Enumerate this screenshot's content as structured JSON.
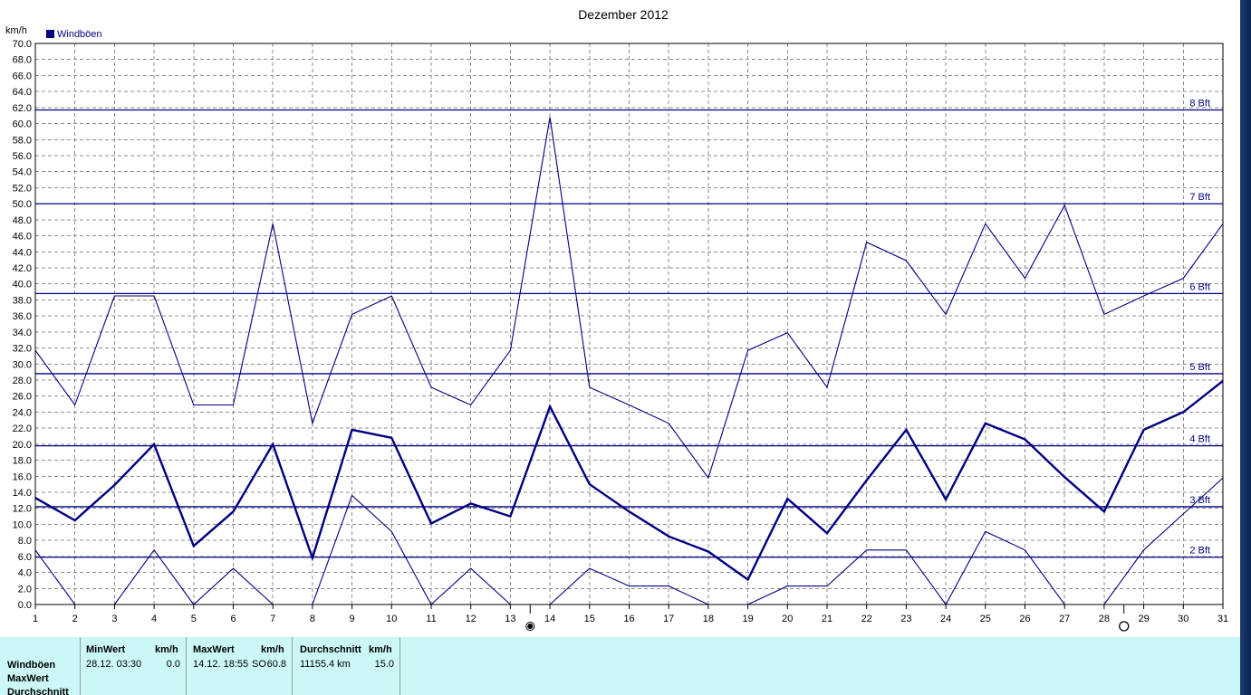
{
  "chart_data": {
    "type": "line",
    "title": "Dezember 2012",
    "ylabel": "km/h",
    "ylim": [
      0,
      70
    ],
    "ytick_step": 2,
    "x": [
      1,
      2,
      3,
      4,
      5,
      6,
      7,
      8,
      9,
      10,
      11,
      12,
      13,
      14,
      15,
      16,
      17,
      18,
      19,
      20,
      21,
      22,
      23,
      24,
      25,
      26,
      27,
      28,
      29,
      30,
      31
    ],
    "grid": true,
    "legend": {
      "placement": "top-left",
      "label": "Windböen",
      "color": "#000080"
    },
    "series": [
      {
        "role": "max",
        "stroke": "thin",
        "values": [
          31.7,
          24.9,
          38.5,
          38.5,
          24.9,
          24.9,
          47.5,
          22.6,
          36.2,
          38.5,
          27.1,
          24.9,
          31.7,
          60.8,
          27.1,
          24.9,
          22.6,
          15.8,
          31.7,
          33.9,
          27.1,
          45.2,
          42.9,
          36.2,
          47.5,
          40.7,
          49.8,
          36.2,
          38.5,
          40.7,
          47.5
        ]
      },
      {
        "role": "average",
        "stroke": "thick",
        "values": [
          13.3,
          10.5,
          14.9,
          20.0,
          7.3,
          11.6,
          20.0,
          5.8,
          21.8,
          20.8,
          10.1,
          12.6,
          11.0,
          24.7,
          15.0,
          11.6,
          8.5,
          6.6,
          3.1,
          13.2,
          8.9,
          15.5,
          21.8,
          13.1,
          22.6,
          20.6,
          15.9,
          11.6,
          21.8,
          24.0,
          27.9
        ]
      },
      {
        "role": "min",
        "stroke": "thin",
        "values": [
          6.8,
          0.0,
          0.0,
          6.8,
          0.0,
          4.5,
          0.0,
          0.0,
          13.6,
          9.1,
          0.0,
          4.5,
          0.0,
          0.0,
          4.5,
          2.3,
          2.3,
          0.0,
          0.0,
          2.3,
          2.3,
          6.8,
          6.8,
          0.0,
          9.1,
          6.8,
          0.0,
          0.0,
          6.8,
          11.3,
          15.8
        ]
      }
    ],
    "beaufort_lines": [
      {
        "label": "2 Bft",
        "value": 5.9
      },
      {
        "label": "3 Bft",
        "value": 12.2
      },
      {
        "label": "4 Bft",
        "value": 19.8
      },
      {
        "label": "5 Bft",
        "value": 28.8
      },
      {
        "label": "6 Bft",
        "value": 38.8
      },
      {
        "label": "7 Bft",
        "value": 50.0
      },
      {
        "label": "8 Bft",
        "value": 61.7
      }
    ],
    "moon_phases": [
      {
        "x": 13.5,
        "phase": "new-moon"
      },
      {
        "x": 28.5,
        "phase": "full-moon"
      }
    ]
  },
  "stats": {
    "row_labels": [
      "Windböen",
      "MaxWert",
      "Durchschnitt"
    ],
    "min": {
      "header": "MinWert",
      "unit": "km/h",
      "when": "28.12.  03:30",
      "value": "0.0"
    },
    "max": {
      "header": "MaxWert",
      "unit": "km/h",
      "when": "14.12.  18:55",
      "dir": "SO",
      "value": "60.8"
    },
    "avg": {
      "header": "Durchschnitt",
      "unit": "km/h",
      "distance": "11155.4 km",
      "value": "15.0"
    }
  },
  "colors": {
    "series": "#000080",
    "grid": "#8c8c8c",
    "panel": "#cbf7f7"
  }
}
